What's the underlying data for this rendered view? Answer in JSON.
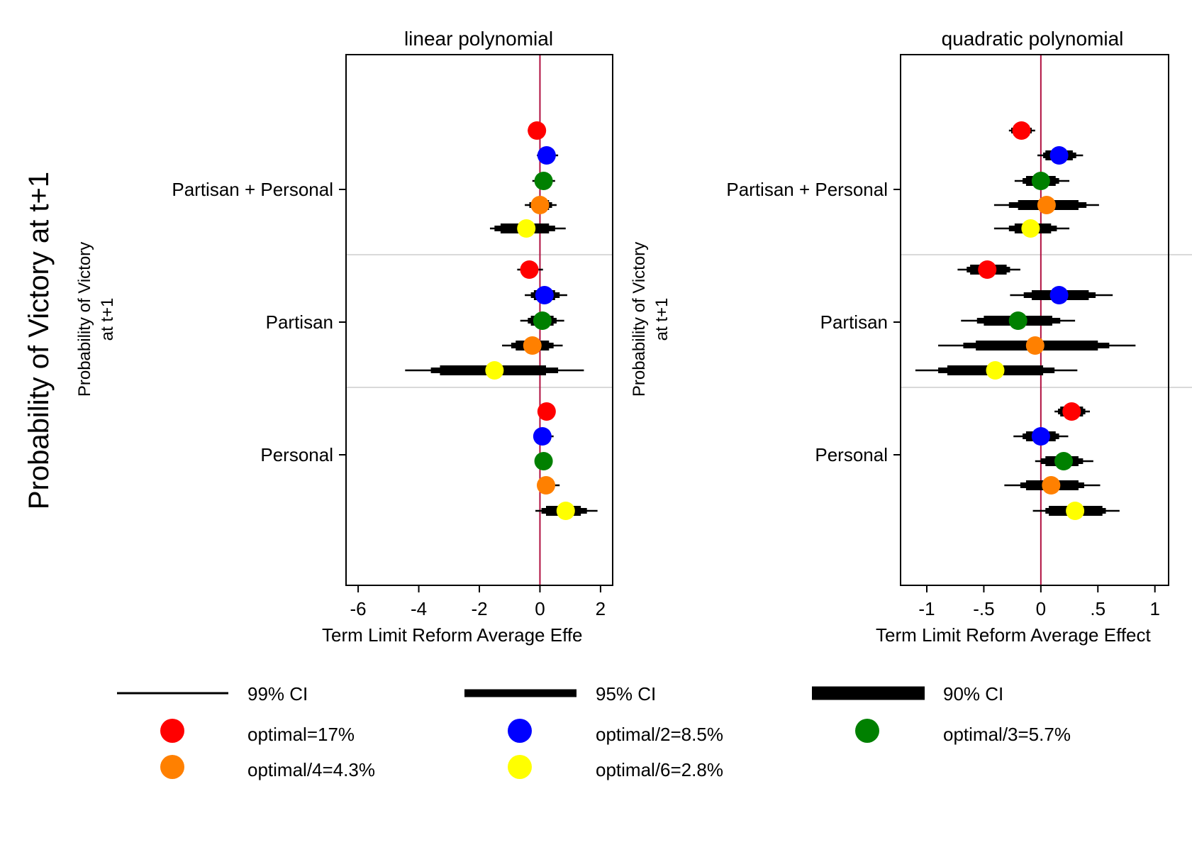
{
  "figure": {
    "y_title": "Probability of Victory at t+1",
    "side_label_line1": "Probability of Victory",
    "side_label_line2": "at t+1"
  },
  "legend": {
    "ci": [
      {
        "label": "99% CI"
      },
      {
        "label": "95% CI"
      },
      {
        "label": "90% CI"
      }
    ],
    "markers": [
      {
        "label": "optimal=17%",
        "color": "#ff0000"
      },
      {
        "label": "optimal/2=8.5%",
        "color": "#0000ff"
      },
      {
        "label": "optimal/3=5.7%",
        "color": "#008000"
      },
      {
        "label": "optimal/4=4.3%",
        "color": "#ff8000"
      },
      {
        "label": "optimal/6=2.8%",
        "color": "#ffff00"
      }
    ]
  },
  "chart_data": [
    {
      "type": "scatter",
      "subtype": "coefficient-plot",
      "title": "linear polynomial",
      "xlabel": "Term Limit Reform Average Effe",
      "xlim": [
        -6.4,
        2.4
      ],
      "xticks": [
        -6,
        -4,
        -2,
        0,
        2
      ],
      "xtick_labels": [
        "-6",
        "-4",
        "-2",
        "0",
        "2"
      ],
      "reference_line": 0,
      "groups": [
        "Partisan + Personal",
        "Partisan",
        "Personal"
      ],
      "series_colors": [
        "#ff0000",
        "#0000ff",
        "#008000",
        "#ff8000",
        "#ffff00"
      ],
      "points": [
        [
          {
            "est": -0.1,
            "ci90": [
              -0.25,
              0.05
            ],
            "ci95": [
              -0.3,
              0.1
            ],
            "ci99": [
              -0.4,
              0.2
            ]
          },
          {
            "est": 0.22,
            "ci90": [
              0.05,
              0.4
            ],
            "ci95": [
              0.0,
              0.45
            ],
            "ci99": [
              -0.1,
              0.6
            ]
          },
          {
            "est": 0.12,
            "ci90": [
              -0.05,
              0.3
            ],
            "ci95": [
              -0.1,
              0.35
            ],
            "ci99": [
              -0.25,
              0.5
            ]
          },
          {
            "est": 0.0,
            "ci90": [
              -0.25,
              0.3
            ],
            "ci95": [
              -0.35,
              0.4
            ],
            "ci99": [
              -0.5,
              0.55
            ]
          },
          {
            "est": -0.45,
            "ci90": [
              -1.3,
              0.3
            ],
            "ci95": [
              -1.5,
              0.5
            ],
            "ci99": [
              -1.65,
              0.85
            ]
          }
        ],
        [
          {
            "est": -0.35,
            "ci90": [
              -0.55,
              -0.15
            ],
            "ci95": [
              -0.6,
              -0.1
            ],
            "ci99": [
              -0.75,
              0.1
            ]
          },
          {
            "est": 0.15,
            "ci90": [
              -0.2,
              0.5
            ],
            "ci95": [
              -0.3,
              0.65
            ],
            "ci99": [
              -0.5,
              0.9
            ]
          },
          {
            "est": 0.08,
            "ci90": [
              -0.3,
              0.45
            ],
            "ci95": [
              -0.4,
              0.55
            ],
            "ci99": [
              -0.65,
              0.8
            ]
          },
          {
            "est": -0.25,
            "ci90": [
              -0.8,
              0.3
            ],
            "ci95": [
              -0.95,
              0.45
            ],
            "ci99": [
              -1.25,
              0.75
            ]
          },
          {
            "est": -1.5,
            "ci90": [
              -3.3,
              0.2
            ],
            "ci95": [
              -3.6,
              0.6
            ],
            "ci99": [
              -4.45,
              1.45
            ]
          }
        ],
        [
          {
            "est": 0.22,
            "ci90": [
              0.1,
              0.35
            ],
            "ci95": [
              0.05,
              0.4
            ],
            "ci99": [
              0.0,
              0.45
            ]
          },
          {
            "est": 0.08,
            "ci90": [
              -0.05,
              0.25
            ],
            "ci95": [
              -0.1,
              0.3
            ],
            "ci99": [
              -0.15,
              0.45
            ]
          },
          {
            "est": 0.12,
            "ci90": [
              0.0,
              0.25
            ],
            "ci95": [
              -0.05,
              0.3
            ],
            "ci99": [
              -0.1,
              0.4
            ]
          },
          {
            "est": 0.2,
            "ci90": [
              0.05,
              0.4
            ],
            "ci95": [
              0.0,
              0.45
            ],
            "ci99": [
              -0.05,
              0.65
            ]
          },
          {
            "est": 0.85,
            "ci90": [
              0.2,
              1.35
            ],
            "ci95": [
              0.05,
              1.55
            ],
            "ci99": [
              -0.15,
              1.9
            ]
          }
        ]
      ]
    },
    {
      "type": "scatter",
      "subtype": "coefficient-plot",
      "title": "quadratic polynomial",
      "xlabel": "Term Limit Reform Average Effect",
      "xlim": [
        -1.23,
        1.12
      ],
      "xticks": [
        -1,
        -0.5,
        0,
        0.5,
        1
      ],
      "xtick_labels": [
        "-1",
        "-.5",
        "0",
        ".5",
        "1"
      ],
      "reference_line": 0,
      "groups": [
        "Partisan + Personal",
        "Partisan",
        "Personal"
      ],
      "series_colors": [
        "#ff0000",
        "#0000ff",
        "#008000",
        "#ff8000",
        "#ffff00"
      ],
      "points": [
        [
          {
            "est": -0.17,
            "ci90": [
              -0.24,
              -0.1
            ],
            "ci95": [
              -0.26,
              -0.08
            ],
            "ci99": [
              -0.28,
              -0.05
            ]
          },
          {
            "est": 0.16,
            "ci90": [
              0.04,
              0.28
            ],
            "ci95": [
              0.02,
              0.31
            ],
            "ci99": [
              -0.03,
              0.37
            ]
          },
          {
            "est": 0.0,
            "ci90": [
              -0.13,
              0.13
            ],
            "ci95": [
              -0.16,
              0.16
            ],
            "ci99": [
              -0.23,
              0.25
            ]
          },
          {
            "est": 0.05,
            "ci90": [
              -0.2,
              0.33
            ],
            "ci95": [
              -0.28,
              0.4
            ],
            "ci99": [
              -0.41,
              0.51
            ]
          },
          {
            "est": -0.09,
            "ci90": [
              -0.23,
              0.09
            ],
            "ci95": [
              -0.28,
              0.14
            ],
            "ci99": [
              -0.41,
              0.25
            ]
          }
        ],
        [
          {
            "est": -0.47,
            "ci90": [
              -0.62,
              -0.3
            ],
            "ci95": [
              -0.65,
              -0.27
            ],
            "ci99": [
              -0.73,
              -0.18
            ]
          },
          {
            "est": 0.16,
            "ci90": [
              -0.08,
              0.42
            ],
            "ci95": [
              -0.15,
              0.48
            ],
            "ci99": [
              -0.27,
              0.63
            ]
          },
          {
            "est": -0.2,
            "ci90": [
              -0.5,
              0.1
            ],
            "ci95": [
              -0.56,
              0.17
            ],
            "ci99": [
              -0.7,
              0.3
            ]
          },
          {
            "est": -0.05,
            "ci90": [
              -0.57,
              0.5
            ],
            "ci95": [
              -0.68,
              0.6
            ],
            "ci99": [
              -0.9,
              0.83
            ]
          },
          {
            "est": -0.4,
            "ci90": [
              -0.82,
              0.02
            ],
            "ci95": [
              -0.9,
              0.12
            ],
            "ci99": [
              -1.1,
              0.32
            ]
          }
        ],
        [
          {
            "est": 0.27,
            "ci90": [
              0.17,
              0.37
            ],
            "ci95": [
              0.15,
              0.39
            ],
            "ci99": [
              0.12,
              0.43
            ]
          },
          {
            "est": 0.0,
            "ci90": [
              -0.13,
              0.13
            ],
            "ci95": [
              -0.16,
              0.16
            ],
            "ci99": [
              -0.24,
              0.24
            ]
          },
          {
            "est": 0.2,
            "ci90": [
              0.04,
              0.33
            ],
            "ci95": [
              0.0,
              0.37
            ],
            "ci99": [
              -0.05,
              0.46
            ]
          },
          {
            "est": 0.09,
            "ci90": [
              -0.13,
              0.33
            ],
            "ci95": [
              -0.18,
              0.38
            ],
            "ci99": [
              -0.32,
              0.52
            ]
          },
          {
            "est": 0.3,
            "ci90": [
              0.07,
              0.54
            ],
            "ci95": [
              0.04,
              0.57
            ],
            "ci99": [
              -0.07,
              0.69
            ]
          }
        ]
      ]
    }
  ]
}
